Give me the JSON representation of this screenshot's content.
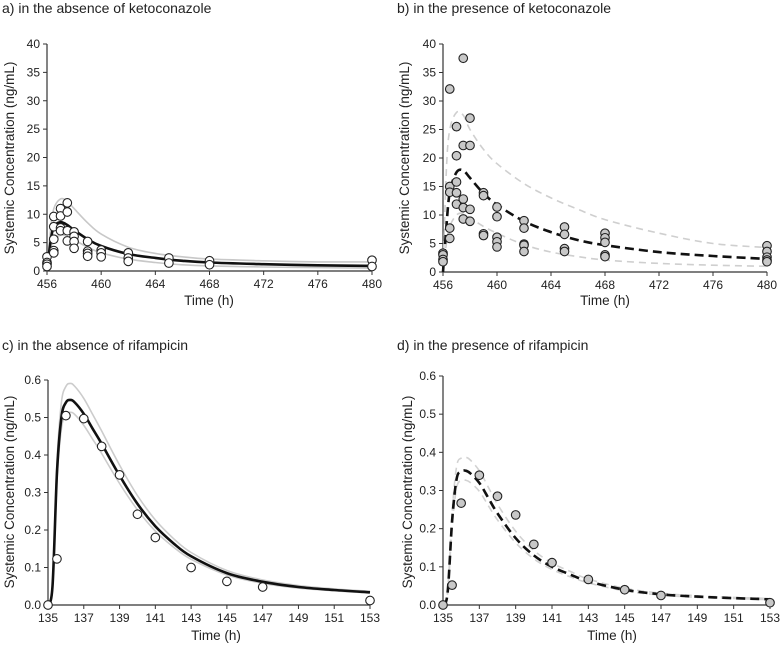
{
  "chart_data": [
    {
      "type": "line",
      "title": "a) in the absence of ketoconazole",
      "xlabel": "Time (h)",
      "ylabel": "Systemic Concentration (ng/mL)",
      "xlim": [
        456,
        480
      ],
      "ylim": [
        0,
        40
      ],
      "xticks": [
        "456",
        "460",
        "464",
        "468",
        "472",
        "476",
        "480"
      ],
      "yticks": [
        "0",
        "5",
        "10",
        "15",
        "20",
        "25",
        "30",
        "35",
        "40"
      ],
      "marker_fill": "#ffffff",
      "dashed": false,
      "curve_x": [
        456,
        456.25,
        456.5,
        457,
        457.5,
        458,
        459,
        460,
        462,
        464,
        466,
        468,
        472,
        476,
        480
      ],
      "series": [
        {
          "name": "upper",
          "color": "#c8c8c8",
          "values": [
            0,
            7,
            11,
            12.7,
            12.3,
            11,
            8.5,
            6.5,
            4.2,
            3.1,
            2.5,
            2.1,
            1.8,
            1.6,
            1.6
          ]
        },
        {
          "name": "lower",
          "color": "#c8c8c8",
          "values": [
            0,
            3.5,
            5.5,
            6.3,
            6.1,
            5.5,
            4.2,
            3.2,
            2.1,
            1.5,
            1.1,
            0.9,
            0.7,
            0.6,
            0.5
          ]
        },
        {
          "name": "median",
          "color": "#111111",
          "values": [
            0,
            5,
            7.8,
            8.6,
            8.1,
            7.2,
            5.6,
            4.4,
            3.0,
            2.3,
            1.8,
            1.5,
            1.2,
            1.0,
            0.9
          ]
        }
      ],
      "observed": [
        [
          456,
          2.5
        ],
        [
          456,
          1.5
        ],
        [
          456,
          1.2
        ],
        [
          456,
          0.8
        ],
        [
          456.5,
          9.6
        ],
        [
          456.5,
          7.8
        ],
        [
          456.5,
          5.6
        ],
        [
          456.5,
          3.6
        ],
        [
          456.5,
          3.2
        ],
        [
          457,
          11
        ],
        [
          457,
          9.7
        ],
        [
          457,
          7.6
        ],
        [
          457,
          7.1
        ],
        [
          457.5,
          12
        ],
        [
          457.5,
          10.4
        ],
        [
          457.5,
          7.1
        ],
        [
          457.5,
          5.3
        ],
        [
          458,
          6.9
        ],
        [
          458,
          6.1
        ],
        [
          458,
          5.2
        ],
        [
          458,
          4
        ],
        [
          459,
          5.2
        ],
        [
          459,
          3.5
        ],
        [
          459,
          3.1
        ],
        [
          459,
          2.6
        ],
        [
          460,
          3.7
        ],
        [
          460,
          3.2
        ],
        [
          460,
          2.5
        ],
        [
          462,
          3.2
        ],
        [
          462,
          2.3
        ],
        [
          462,
          1.7
        ],
        [
          465,
          2.3
        ],
        [
          465,
          1.4
        ],
        [
          468,
          1.8
        ],
        [
          468,
          1.1
        ],
        [
          480,
          1.9
        ],
        [
          480,
          0.8
        ]
      ]
    },
    {
      "type": "line",
      "title": "b) in the presence of ketoconazole",
      "xlabel": "Time (h)",
      "ylabel": "Systemic Concentration (ng/mL)",
      "xlim": [
        456,
        480
      ],
      "ylim": [
        0,
        40
      ],
      "xticks": [
        "456",
        "460",
        "464",
        "468",
        "472",
        "476",
        "480"
      ],
      "yticks": [
        "0",
        "5",
        "10",
        "15",
        "20",
        "25",
        "30",
        "35",
        "40"
      ],
      "marker_fill": "#c8c8c8",
      "dashed": true,
      "curve_x": [
        456,
        456.25,
        456.5,
        457,
        457.5,
        458,
        459,
        460,
        462,
        464,
        466,
        468,
        472,
        476,
        480
      ],
      "series": [
        {
          "name": "upper",
          "color": "#cfcfcf",
          "values": [
            0,
            18,
            25,
            28,
            27.5,
            25,
            21.5,
            19,
            15.5,
            13,
            11,
            9.2,
            6.8,
            5,
            4.3
          ]
        },
        {
          "name": "lower",
          "color": "#cfcfcf",
          "values": [
            0,
            5,
            8,
            10,
            10.3,
            9.5,
            8,
            6.8,
            4.8,
            3.5,
            2.7,
            2.1,
            1.5,
            1.2,
            1.0
          ]
        },
        {
          "name": "median",
          "color": "#111111",
          "values": [
            0,
            8,
            14,
            17.5,
            17.8,
            16.5,
            13.8,
            11.8,
            8.9,
            7,
            5.6,
            4.7,
            3.5,
            2.8,
            2.3
          ]
        }
      ],
      "observed": [
        [
          456,
          3.3
        ],
        [
          456,
          3
        ],
        [
          456,
          2.2
        ],
        [
          456,
          1.8
        ],
        [
          456.5,
          32.1
        ],
        [
          456.5,
          15
        ],
        [
          456.5,
          14
        ],
        [
          456.5,
          7.7
        ],
        [
          456.5,
          5.9
        ],
        [
          457,
          25.5
        ],
        [
          457,
          20.4
        ],
        [
          457,
          15.8
        ],
        [
          457,
          13.9
        ],
        [
          457,
          11.9
        ],
        [
          457.5,
          37.5
        ],
        [
          457.5,
          22.2
        ],
        [
          457.5,
          12.8
        ],
        [
          457.5,
          11.3
        ],
        [
          457.5,
          9.3
        ],
        [
          458,
          27
        ],
        [
          458,
          22.2
        ],
        [
          458,
          11
        ],
        [
          458,
          8.9
        ],
        [
          459,
          13.9
        ],
        [
          459,
          13.4
        ],
        [
          459,
          6.7
        ],
        [
          459,
          6.4
        ],
        [
          460,
          11.4
        ],
        [
          460,
          9.7
        ],
        [
          460,
          6.1
        ],
        [
          460,
          5.3
        ],
        [
          460,
          4.4
        ],
        [
          462,
          9
        ],
        [
          462,
          7.7
        ],
        [
          462,
          4.9
        ],
        [
          462,
          4.7
        ],
        [
          462,
          3.6
        ],
        [
          465,
          7.9
        ],
        [
          465,
          6.6
        ],
        [
          465,
          4.1
        ],
        [
          465,
          3.6
        ],
        [
          468,
          6.8
        ],
        [
          468,
          6
        ],
        [
          468,
          5.2
        ],
        [
          468,
          3
        ],
        [
          468,
          2.7
        ],
        [
          480,
          4.6
        ],
        [
          480,
          3.6
        ],
        [
          480,
          2.6
        ],
        [
          480,
          2.1
        ],
        [
          480,
          1.8
        ]
      ]
    },
    {
      "type": "line",
      "title": "c) in the absence of rifampicin",
      "xlabel": "Time (h)",
      "ylabel": "Systemic Concentration (ng/mL)",
      "xlim": [
        135,
        153
      ],
      "ylim": [
        0,
        0.6
      ],
      "xticks": [
        "135",
        "137",
        "139",
        "141",
        "143",
        "145",
        "147",
        "149",
        "151",
        "153"
      ],
      "yticks": [
        "0.0",
        "0.1",
        "0.2",
        "0.3",
        "0.4",
        "0.5",
        "0.6"
      ],
      "marker_fill": "#ffffff",
      "dashed": false,
      "curve_x": [
        135,
        135.25,
        135.5,
        135.75,
        136,
        136.25,
        136.5,
        137,
        137.5,
        138,
        139,
        140,
        141,
        142,
        143,
        145,
        147,
        149,
        151,
        153
      ],
      "series": [
        {
          "name": "sim-upper",
          "color": "#cccccc",
          "values": [
            0,
            0.054,
            0.378,
            0.54,
            0.583,
            0.591,
            0.583,
            0.551,
            0.508,
            0.464,
            0.373,
            0.292,
            0.227,
            0.178,
            0.14,
            0.092,
            0.067,
            0.052,
            0.043,
            0.037
          ]
        },
        {
          "name": "sim-lower",
          "color": "#cccccc",
          "values": [
            0,
            0.047,
            0.329,
            0.47,
            0.508,
            0.514,
            0.508,
            0.479,
            0.442,
            0.404,
            0.324,
            0.254,
            0.197,
            0.155,
            0.122,
            0.08,
            0.058,
            0.045,
            0.038,
            0.032
          ]
        },
        {
          "name": "median",
          "color": "#111111",
          "values": [
            0,
            0.05,
            0.35,
            0.5,
            0.54,
            0.547,
            0.54,
            0.51,
            0.47,
            0.43,
            0.345,
            0.27,
            0.21,
            0.165,
            0.13,
            0.085,
            0.062,
            0.048,
            0.04,
            0.034
          ]
        }
      ],
      "observed": [
        [
          135,
          0
        ],
        [
          135.5,
          0.123
        ],
        [
          136,
          0.505
        ],
        [
          137,
          0.497
        ],
        [
          138,
          0.423
        ],
        [
          139,
          0.347
        ],
        [
          140,
          0.242
        ],
        [
          141,
          0.18
        ],
        [
          143,
          0.1
        ],
        [
          145,
          0.063
        ],
        [
          147,
          0.048
        ],
        [
          153,
          0.012
        ]
      ]
    },
    {
      "type": "line",
      "title": "d) in the presence of rifampicin",
      "xlabel": "Time (h)",
      "ylabel": "Systemic Concentration (ng/mL)",
      "xlim": [
        135,
        153
      ],
      "ylim": [
        0,
        0.6
      ],
      "xticks": [
        "135",
        "137",
        "139",
        "141",
        "143",
        "145",
        "147",
        "149",
        "151",
        "153"
      ],
      "yticks": [
        "0.0",
        "0.1",
        "0.2",
        "0.3",
        "0.4",
        "0.5",
        "0.6"
      ],
      "marker_fill": "#c8c8c8",
      "dashed": true,
      "curve_x": [
        135,
        135.25,
        135.5,
        135.75,
        136,
        136.25,
        136.5,
        137,
        137.5,
        138,
        139,
        140,
        141,
        142,
        143,
        145,
        147,
        149,
        151,
        153
      ],
      "series": [
        {
          "name": "sim-upper",
          "color": "#d2d2d2",
          "values": [
            0,
            0.033,
            0.242,
            0.363,
            0.385,
            0.387,
            0.38,
            0.352,
            0.308,
            0.264,
            0.193,
            0.143,
            0.11,
            0.088,
            0.068,
            0.044,
            0.031,
            0.024,
            0.02,
            0.017
          ]
        },
        {
          "name": "sim-lower",
          "color": "#d2d2d2",
          "values": [
            0,
            0.028,
            0.205,
            0.307,
            0.326,
            0.327,
            0.321,
            0.298,
            0.26,
            0.223,
            0.163,
            0.121,
            0.093,
            0.074,
            0.058,
            0.037,
            0.026,
            0.02,
            0.017,
            0.014
          ]
        },
        {
          "name": "median",
          "color": "#111111",
          "values": [
            0,
            0.03,
            0.22,
            0.33,
            0.35,
            0.352,
            0.345,
            0.32,
            0.28,
            0.24,
            0.175,
            0.13,
            0.1,
            0.08,
            0.062,
            0.04,
            0.028,
            0.022,
            0.018,
            0.015
          ]
        }
      ],
      "observed": [
        [
          135,
          0
        ],
        [
          135.5,
          0.052
        ],
        [
          136,
          0.267
        ],
        [
          137,
          0.34
        ],
        [
          138,
          0.285
        ],
        [
          139,
          0.236
        ],
        [
          140,
          0.159
        ],
        [
          141,
          0.111
        ],
        [
          143,
          0.067
        ],
        [
          145,
          0.04
        ],
        [
          147,
          0.025
        ],
        [
          153,
          0.006
        ]
      ]
    }
  ]
}
